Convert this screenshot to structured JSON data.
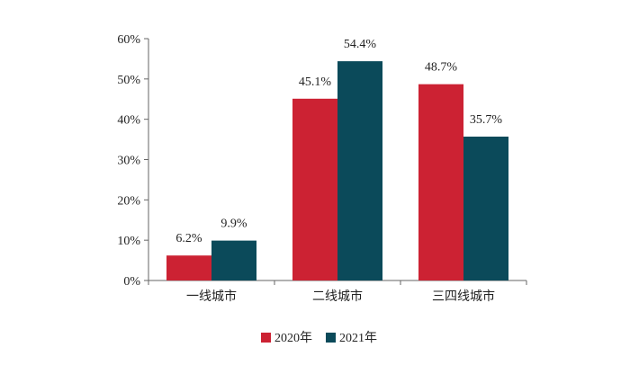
{
  "chart_data": {
    "type": "bar",
    "title": "",
    "xlabel": "",
    "ylabel": "",
    "categories": [
      "一线城市",
      "二线城市",
      "三四线城市"
    ],
    "series": [
      {
        "name": "2020年",
        "color": "#cc2233",
        "values": [
          6.2,
          45.1,
          48.7
        ],
        "labels": [
          "6.2%",
          "45.1%",
          "48.7%"
        ]
      },
      {
        "name": "2021年",
        "color": "#0b4a5a",
        "values": [
          9.9,
          54.4,
          35.7
        ],
        "labels": [
          "9.9%",
          "54.4%",
          "35.7%"
        ]
      }
    ],
    "ylim": [
      0,
      60
    ],
    "yticks": [
      0,
      10,
      20,
      30,
      40,
      50,
      60
    ],
    "ytick_labels": [
      "0%",
      "10%",
      "20%",
      "30%",
      "40%",
      "50%",
      "60%"
    ],
    "grid": false,
    "legend": "bottom"
  }
}
